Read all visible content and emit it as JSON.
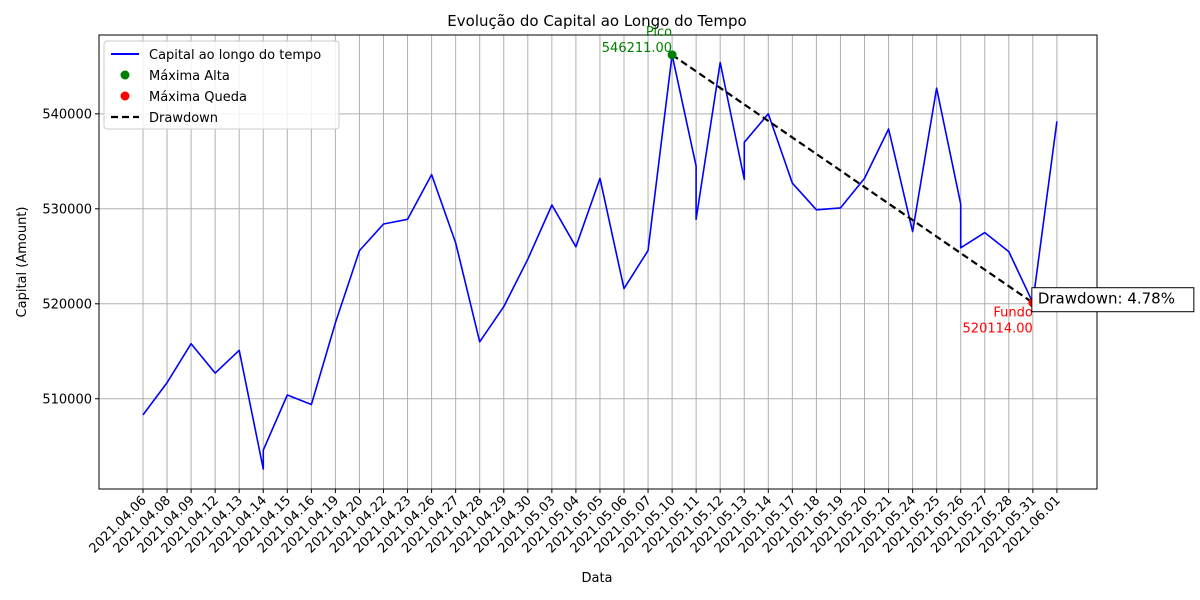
{
  "chart_data": {
    "type": "line",
    "title": "Evolução do Capital ao Longo do Tempo",
    "xlabel": "Data",
    "ylabel": "Capital (Amount)",
    "ylim": [
      500500,
      548300
    ],
    "yticks": [
      510000,
      520000,
      530000,
      540000
    ],
    "ytick_labels": [
      "510000",
      "520000",
      "530000",
      "540000"
    ],
    "grid": true,
    "legend_position": "top-left",
    "categories": [
      "2021.04.06",
      "2021.04.08",
      "2021.04.09",
      "2021.04.12",
      "2021.04.13",
      "2021.04.14",
      "2021.04.15",
      "2021.04.16",
      "2021.04.19",
      "2021.04.20",
      "2021.04.22",
      "2021.04.23",
      "2021.04.26",
      "2021.04.27",
      "2021.04.28",
      "2021.04.29",
      "2021.04.30",
      "2021.05.03",
      "2021.05.04",
      "2021.05.05",
      "2021.05.06",
      "2021.05.07",
      "2021.05.10",
      "2021.05.11",
      "2021.05.12",
      "2021.05.13",
      "2021.05.14",
      "2021.05.17",
      "2021.05.18",
      "2021.05.19",
      "2021.05.20",
      "2021.05.21",
      "2021.05.24",
      "2021.05.25",
      "2021.05.26",
      "2021.05.27",
      "2021.05.28",
      "2021.05.31",
      "2021.06.01"
    ],
    "series": [
      {
        "name": "Capital ao longo do tempo",
        "color": "#0000ff",
        "points": [
          {
            "x": 0,
            "y": 508300
          },
          {
            "x": 1,
            "y": 511700
          },
          {
            "x": 2,
            "y": 515800
          },
          {
            "x": 3,
            "y": 512700
          },
          {
            "x": 4,
            "y": 515100
          },
          {
            "x": 5,
            "y": 502600
          },
          {
            "x": 5,
            "y": 504600
          },
          {
            "x": 6,
            "y": 510400
          },
          {
            "x": 7,
            "y": 509400
          },
          {
            "x": 8,
            "y": 518000
          },
          {
            "x": 9,
            "y": 525600
          },
          {
            "x": 10,
            "y": 528400
          },
          {
            "x": 11,
            "y": 528900
          },
          {
            "x": 12,
            "y": 533600
          },
          {
            "x": 13,
            "y": 526400
          },
          {
            "x": 14,
            "y": 516000
          },
          {
            "x": 15,
            "y": 519700
          },
          {
            "x": 16,
            "y": 524700
          },
          {
            "x": 17,
            "y": 530400
          },
          {
            "x": 18,
            "y": 526000
          },
          {
            "x": 19,
            "y": 533200
          },
          {
            "x": 20,
            "y": 521600
          },
          {
            "x": 21,
            "y": 525600
          },
          {
            "x": 22,
            "y": 546211
          },
          {
            "x": 23,
            "y": 534500
          },
          {
            "x": 23,
            "y": 528900
          },
          {
            "x": 24,
            "y": 545400
          },
          {
            "x": 25,
            "y": 533100
          },
          {
            "x": 25,
            "y": 537000
          },
          {
            "x": 26,
            "y": 540000
          },
          {
            "x": 27,
            "y": 532700
          },
          {
            "x": 28,
            "y": 529900
          },
          {
            "x": 29,
            "y": 530100
          },
          {
            "x": 30,
            "y": 533200
          },
          {
            "x": 31,
            "y": 538400
          },
          {
            "x": 32,
            "y": 527600
          },
          {
            "x": 33,
            "y": 542700
          },
          {
            "x": 34,
            "y": 530500
          },
          {
            "x": 34,
            "y": 525900
          },
          {
            "x": 35,
            "y": 527500
          },
          {
            "x": 36,
            "y": 525500
          },
          {
            "x": 37,
            "y": 520114
          },
          {
            "x": 38,
            "y": 539200
          }
        ]
      }
    ],
    "legend": [
      {
        "label": "Capital ao longo do tempo",
        "kind": "line",
        "color": "#0000ff"
      },
      {
        "label": "Máxima Alta",
        "kind": "marker",
        "color": "#008000"
      },
      {
        "label": "Máxima Queda",
        "kind": "marker",
        "color": "#ff0000"
      },
      {
        "label": "Drawdown",
        "kind": "dashed",
        "color": "#000000"
      }
    ],
    "peak": {
      "x": 22,
      "y": 546211,
      "label": "Pico",
      "value_label": "546211.00",
      "color": "#008000"
    },
    "trough": {
      "x": 37,
      "y": 520114,
      "label": "Fundo",
      "value_label": "520114.00",
      "color": "#ff0000"
    },
    "drawdown": {
      "label": "Drawdown: 4.78%",
      "color": "#000000"
    }
  }
}
